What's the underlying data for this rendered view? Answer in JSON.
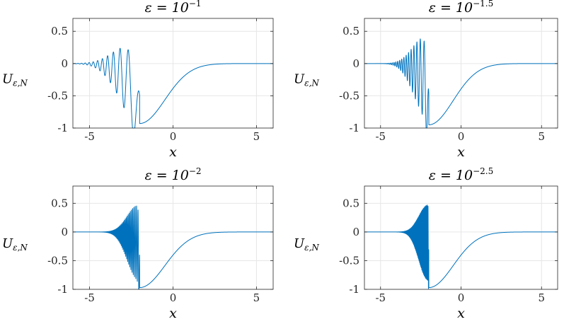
{
  "chart_data": [
    {
      "type": "line",
      "title_prefix": "ε = 10",
      "title_exponent": "−1",
      "xlabel": "x",
      "ylabel": "U",
      "ylabel_sub": "ε,N",
      "xlim": [
        -6,
        6
      ],
      "ylim": [
        -1,
        0.7
      ],
      "xticks": [
        -5,
        0,
        5
      ],
      "xtick_labels": [
        "-5",
        "0",
        "5"
      ],
      "yticks": [
        0.5,
        0,
        -0.5,
        -1
      ],
      "ytick_labels": [
        "0.5",
        "0",
        "-0.5",
        "-1"
      ],
      "grid": true,
      "series": [
        {
          "color": "#0072BD",
          "epsilon": 0.1,
          "min_x": -2.0,
          "min_y": -0.93,
          "peak_y": 0.6,
          "osc_start_x": -5.2,
          "wave_period": 0.9
        }
      ]
    },
    {
      "type": "line",
      "title_prefix": "ε = 10",
      "title_exponent": "−1.5",
      "xlabel": "x",
      "ylabel": "U",
      "ylabel_sub": "ε,N",
      "xlim": [
        -6,
        6
      ],
      "ylim": [
        -1,
        0.7
      ],
      "xticks": [
        -5,
        0,
        5
      ],
      "xtick_labels": [
        "-5",
        "0",
        "5"
      ],
      "yticks": [
        0.5,
        0,
        -0.5,
        -1
      ],
      "ytick_labels": [
        "0.5",
        "0",
        "-0.5",
        "-1"
      ],
      "grid": true,
      "series": [
        {
          "color": "#0072BD",
          "epsilon": 0.0316,
          "min_x": -2.0,
          "min_y": -0.95,
          "peak_y": 0.64,
          "osc_start_x": -4.3,
          "wave_period": 0.33
        }
      ]
    },
    {
      "type": "line",
      "title_prefix": "ε = 10",
      "title_exponent": "−2",
      "xlabel": "x",
      "ylabel": "U",
      "ylabel_sub": "ε,N",
      "xlim": [
        -6,
        6
      ],
      "ylim": [
        -1,
        0.8
      ],
      "xticks": [
        -5,
        0,
        5
      ],
      "xtick_labels": [
        "-5",
        "0",
        "5"
      ],
      "yticks": [
        0.5,
        0,
        -0.5,
        -1
      ],
      "ytick_labels": [
        "0.5",
        "0",
        "-0.5",
        "-1"
      ],
      "grid": true,
      "series": [
        {
          "color": "#0072BD",
          "epsilon": 0.01,
          "min_x": -2.0,
          "min_y": -0.97,
          "peak_y": 0.66,
          "osc_start_x": -3.8,
          "wave_period": 0.1
        }
      ]
    },
    {
      "type": "line",
      "title_prefix": "ε = 10",
      "title_exponent": "−2.5",
      "xlabel": "x",
      "ylabel": "U",
      "ylabel_sub": "ε,N",
      "xlim": [
        -6,
        6
      ],
      "ylim": [
        -1,
        0.8
      ],
      "xticks": [
        -5,
        0,
        5
      ],
      "xtick_labels": [
        "-5",
        "0",
        "5"
      ],
      "yticks": [
        0.5,
        0,
        -0.5,
        -1
      ],
      "ytick_labels": [
        "0.5",
        "0",
        "-0.5",
        "-1"
      ],
      "grid": true,
      "series": [
        {
          "color": "#0072BD",
          "epsilon": 0.00316,
          "min_x": -2.0,
          "min_y": -0.97,
          "peak_y": 0.66,
          "osc_start_x": -3.5,
          "wave_period": 0.05
        }
      ]
    }
  ]
}
